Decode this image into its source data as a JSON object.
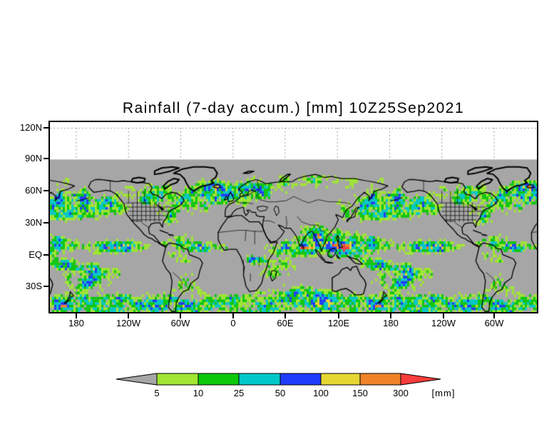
{
  "title": "Rainfall (7-day accum.) [mm] 10Z25Sep2021",
  "axes": {
    "lat_labels": [
      "120N",
      "90N",
      "60N",
      "30N",
      "EQ",
      "30S"
    ],
    "lon_labels": [
      "180",
      "120W",
      "60W",
      "0",
      "60E",
      "120E",
      "180",
      "120W",
      "60W"
    ]
  },
  "colorbar": {
    "tick_labels": [
      "5",
      "10",
      "25",
      "50",
      "100",
      "150",
      "300"
    ],
    "unit": "[mm]",
    "segments": [
      {
        "range": "<5",
        "color": "#a6a6a6"
      },
      {
        "range": "5-10",
        "color": "#a0e632"
      },
      {
        "range": "10-25",
        "color": "#0cc80c"
      },
      {
        "range": "25-50",
        "color": "#00c8c8"
      },
      {
        "range": "50-100",
        "color": "#1e3cfa"
      },
      {
        "range": "100-150",
        "color": "#e6d632"
      },
      {
        "range": "150-300",
        "color": "#f08228"
      },
      {
        "range": ">300",
        "color": "#fa3c3c"
      }
    ]
  },
  "map": {
    "no_data_band_color": "#ffffff",
    "background_color": "#a6a6a6",
    "coastline_color": "#000000",
    "gridline_color": "#9c9c9c"
  }
}
